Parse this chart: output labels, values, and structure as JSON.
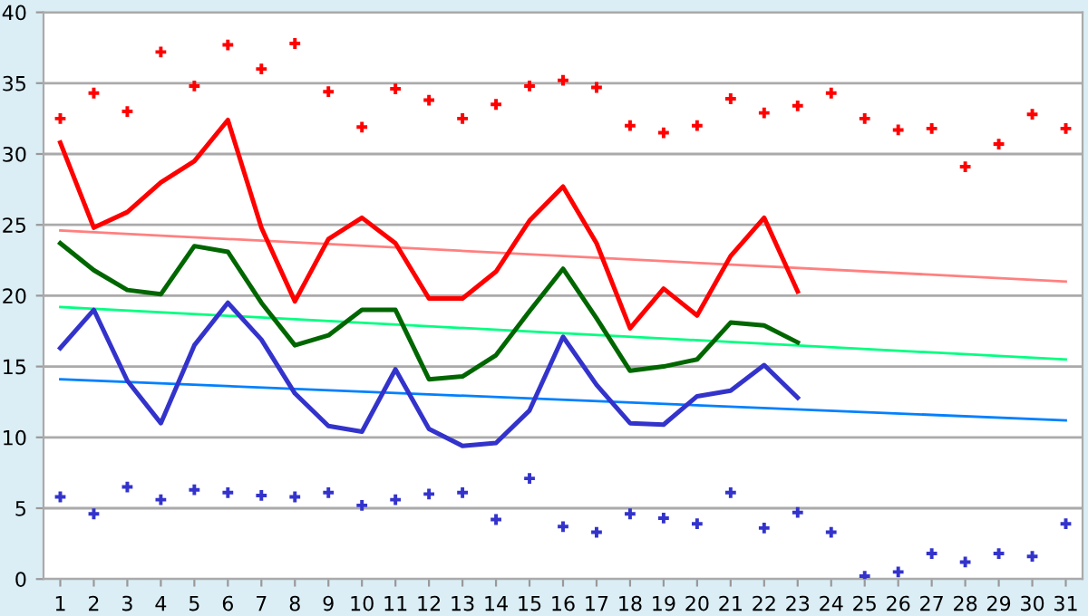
{
  "chart_data": {
    "type": "line",
    "x": [
      1,
      2,
      3,
      4,
      5,
      6,
      7,
      8,
      9,
      10,
      11,
      12,
      13,
      14,
      15,
      16,
      17,
      18,
      19,
      20,
      21,
      22,
      23,
      24,
      25,
      26,
      27,
      28,
      29,
      30,
      31
    ],
    "xlim": [
      0.5,
      31.5
    ],
    "xticks": [
      1,
      2,
      3,
      4,
      5,
      6,
      7,
      8,
      9,
      10,
      11,
      12,
      13,
      14,
      15,
      16,
      17,
      18,
      19,
      20,
      21,
      22,
      23,
      24,
      25,
      26,
      27,
      28,
      29,
      30,
      31
    ],
    "ylim": [
      0,
      40
    ],
    "yticks": [
      0,
      5,
      10,
      15,
      20,
      25,
      30,
      35,
      40
    ],
    "grid": "y",
    "legend": false,
    "series": [
      {
        "type": "scatter",
        "marker": "cross",
        "color": "#ff0000",
        "values": [
          32.5,
          34.3,
          33,
          37.2,
          34.8,
          37.7,
          36,
          37.8,
          34.4,
          31.9,
          34.6,
          33.8,
          32.5,
          33.5,
          34.8,
          35.2,
          34.7,
          32,
          31.5,
          32,
          33.9,
          32.9,
          33.4,
          34.3,
          32.5,
          31.7,
          31.8,
          29.1,
          30.7,
          32.8,
          31.8
        ]
      },
      {
        "type": "scatter",
        "marker": "cross",
        "color": "#3333cc",
        "values": [
          5.8,
          4.6,
          6.5,
          5.6,
          6.3,
          6.1,
          5.9,
          5.8,
          6.1,
          5.2,
          5.6,
          6,
          6.1,
          4.2,
          7.1,
          3.7,
          3.3,
          4.6,
          4.3,
          3.9,
          6.1,
          3.6,
          4.7,
          3.3,
          0.2,
          0.5,
          1.8,
          1.2,
          1.8,
          1.6,
          3.9
        ]
      },
      {
        "color": "#ff8080",
        "x": [
          1,
          31
        ],
        "values": [
          24.6,
          21
        ]
      },
      {
        "color": "#00ff80",
        "x": [
          1,
          31
        ],
        "values": [
          19.2,
          15.5
        ]
      },
      {
        "color": "#0080ff",
        "x": [
          1,
          31
        ],
        "values": [
          14.1,
          11.2
        ]
      },
      {
        "color": "#ff0000",
        "x": [
          1,
          2,
          3,
          4,
          5,
          6,
          7,
          8,
          9,
          10,
          11,
          12,
          13,
          14,
          15,
          16,
          17,
          18,
          19,
          20,
          21,
          22,
          23
        ],
        "values": [
          30.8,
          24.8,
          25.9,
          28,
          29.5,
          32.4,
          24.8,
          19.6,
          24,
          25.5,
          23.7,
          19.8,
          19.8,
          21.7,
          25.3,
          27.7,
          23.7,
          17.7,
          20.5,
          18.6,
          22.8,
          25.5,
          20.3
        ]
      },
      {
        "color": "#006600",
        "x": [
          1,
          2,
          3,
          4,
          5,
          6,
          7,
          8,
          9,
          10,
          11,
          12,
          13,
          14,
          15,
          16,
          17,
          18,
          19,
          20,
          21,
          22,
          23
        ],
        "values": [
          23.7,
          21.8,
          20.4,
          20.1,
          23.5,
          23.1,
          19.5,
          16.5,
          17.2,
          19,
          19,
          14.1,
          14.3,
          15.8,
          18.9,
          21.9,
          18.4,
          14.7,
          15,
          15.5,
          18.1,
          17.9,
          16.7
        ]
      },
      {
        "color": "#3333cc",
        "x": [
          1,
          2,
          3,
          4,
          5,
          6,
          7,
          8,
          9,
          10,
          11,
          12,
          13,
          14,
          15,
          16,
          17,
          18,
          19,
          20,
          21,
          22,
          23
        ],
        "values": [
          16.3,
          19,
          14,
          11,
          16.5,
          19.5,
          16.9,
          13.1,
          10.8,
          10.4,
          14.8,
          10.6,
          9.4,
          9.6,
          11.9,
          17.1,
          13.7,
          11,
          10.9,
          12.9,
          13.3,
          15.1,
          12.8
        ]
      }
    ]
  }
}
